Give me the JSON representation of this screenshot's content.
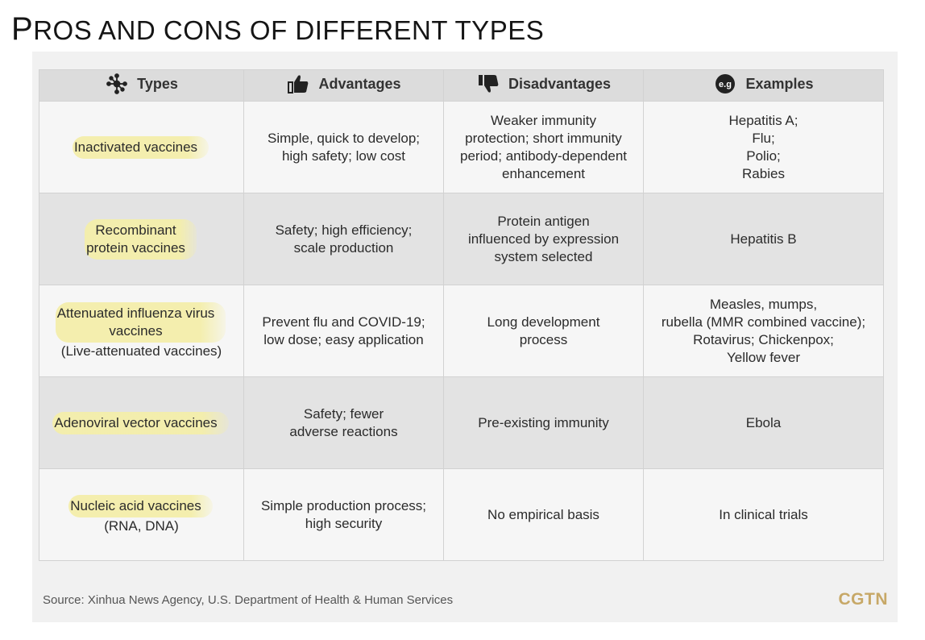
{
  "title": "Pros and cons of different types",
  "columns": {
    "types": "Types",
    "advantages": "Advantages",
    "disadvantages": "Disadvantages",
    "examples_badge": "e.g",
    "examples": "Examples"
  },
  "rows": [
    {
      "type": [
        "Inactivated vaccines"
      ],
      "advantages": [
        "Simple, quick to develop;",
        "high safety; low cost"
      ],
      "disadvantages": [
        "Weaker immunity",
        "protection; short immunity",
        "period; antibody-dependent",
        "enhancement"
      ],
      "examples": [
        "Hepatitis A;",
        "Flu;",
        "Polio;",
        "Rabies"
      ]
    },
    {
      "type": [
        "Recombinant",
        "protein vaccines"
      ],
      "advantages": [
        "Safety; high efficiency;",
        "scale production"
      ],
      "disadvantages": [
        "Protein antigen",
        "influenced by expression",
        "system selected"
      ],
      "examples": [
        "Hepatitis B"
      ]
    },
    {
      "type": [
        "Attenuated influenza virus",
        "vaccines"
      ],
      "type_note": "(Live-attenuated vaccines)",
      "advantages": [
        "Prevent flu and COVID-19;",
        "low dose; easy application"
      ],
      "disadvantages": [
        "Long development",
        "process"
      ],
      "examples": [
        "Measles, mumps,",
        "rubella (MMR combined vaccine);",
        "Rotavirus; Chickenpox;",
        "Yellow fever"
      ]
    },
    {
      "type": [
        "Adenoviral vector vaccines"
      ],
      "advantages": [
        "Safety; fewer",
        "adverse reactions"
      ],
      "disadvantages": [
        "Pre-existing immunity"
      ],
      "examples": [
        "Ebola"
      ]
    },
    {
      "type": [
        "Nucleic acid vaccines"
      ],
      "type_note": "(RNA, DNA)",
      "advantages": [
        "Simple production process;",
        "high security"
      ],
      "disadvantages": [
        "No empirical basis"
      ],
      "examples": [
        "In clinical trials"
      ]
    }
  ],
  "footer": {
    "source": "Source: Xinhua News Agency, U.S. Department of Health & Human Services",
    "brand": "CGTN"
  },
  "colors": {
    "highlight": "#f4eeaa",
    "header_bg": "#dcdcdc",
    "row_light": "#f6f6f6",
    "row_dark": "#e3e3e3",
    "brand": "#c7a867"
  }
}
